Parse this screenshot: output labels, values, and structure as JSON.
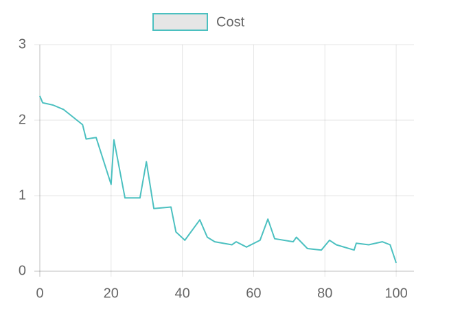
{
  "chart_data": {
    "type": "line",
    "x": [
      0,
      0.8,
      3.7,
      6.7,
      12,
      13,
      15.8,
      20,
      20.8,
      23.9,
      28.1,
      29.9,
      32,
      36.8,
      38.2,
      40.7,
      44.9,
      47,
      49.1,
      53.9,
      55.1,
      58,
      61.8,
      64,
      65.9,
      71.1,
      72,
      75.1,
      79,
      81.3,
      83.2,
      88.2,
      88.8,
      92.3,
      96.1,
      98.3,
      100
    ],
    "series": [
      {
        "name": "Cost",
        "color": "#4bc0c0",
        "fill": "#e6e6e6",
        "values": [
          2.32,
          2.23,
          2.2,
          2.14,
          1.94,
          1.75,
          1.77,
          1.15,
          1.74,
          0.97,
          0.97,
          1.45,
          0.83,
          0.85,
          0.52,
          0.41,
          0.68,
          0.45,
          0.39,
          0.35,
          0.39,
          0.32,
          0.41,
          0.69,
          0.43,
          0.39,
          0.45,
          0.3,
          0.28,
          0.41,
          0.35,
          0.28,
          0.37,
          0.35,
          0.39,
          0.35,
          0.11
        ]
      }
    ],
    "xlim": [
      0,
      105
    ],
    "xticks": [
      0,
      20,
      40,
      60,
      80,
      100
    ],
    "ylim": [
      0,
      3
    ],
    "yticks": [
      0,
      1,
      2,
      3
    ],
    "grid": true,
    "legend": "top"
  }
}
